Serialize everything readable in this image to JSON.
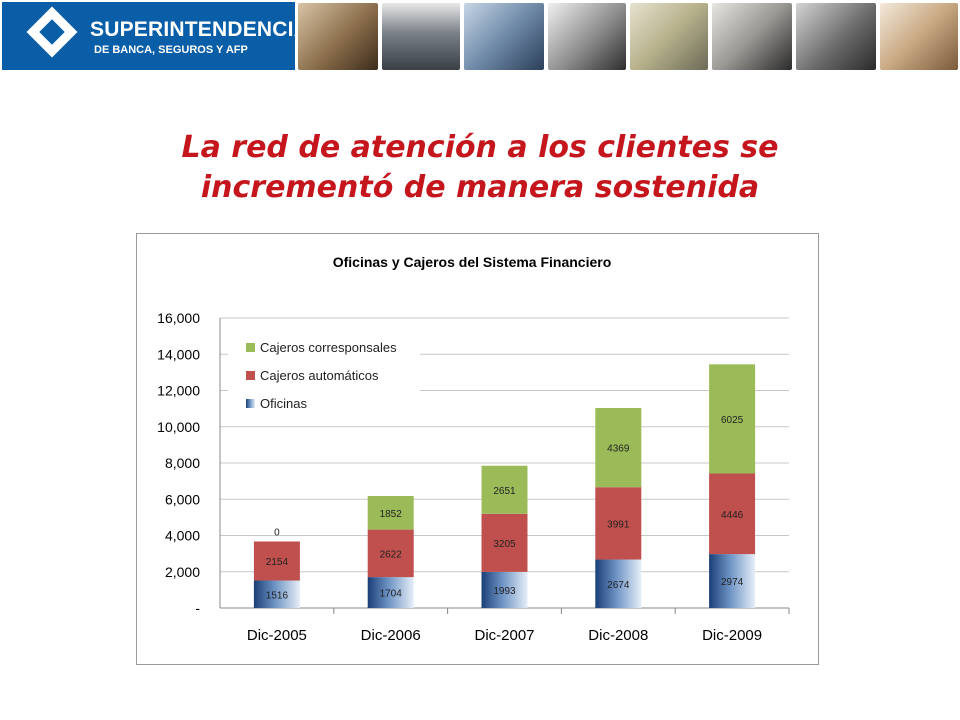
{
  "header": {
    "logo_line1": "SUPERINTENDENCIA",
    "logo_line2": "DE BANCA, SEGUROS Y AFP",
    "brand_color": "#0a5ea8"
  },
  "slide": {
    "title_line1": "La red de atención a los clientes se",
    "title_line2": "incrementó de manera sostenida",
    "title_color": "#c4161c"
  },
  "chart_data": {
    "type": "bar",
    "stacked": true,
    "title": "Oficinas y Cajeros del Sistema Financiero",
    "categories": [
      "Dic-2005",
      "Dic-2006",
      "Dic-2007",
      "Dic-2008",
      "Dic-2009"
    ],
    "series": [
      {
        "name": "Oficinas",
        "values": [
          1516,
          1704,
          1993,
          2674,
          2974
        ],
        "color": "#1f4e8c"
      },
      {
        "name": "Cajeros automáticos",
        "values": [
          2154,
          2622,
          3205,
          3991,
          4446
        ],
        "color": "#c0504d"
      },
      {
        "name": "Cajeros corresponsales",
        "values": [
          0,
          1852,
          2651,
          4369,
          6025
        ],
        "color": "#9bbb59"
      }
    ],
    "ylim": [
      0,
      16000
    ],
    "yticks": [
      "-",
      "2,000",
      "4,000",
      "6,000",
      "8,000",
      "10,000",
      "12,000",
      "14,000",
      "16,000"
    ],
    "grid": true,
    "legend_position": "top-left",
    "legend_order": [
      "Cajeros corresponsales",
      "Cajeros automáticos",
      "Oficinas"
    ]
  }
}
